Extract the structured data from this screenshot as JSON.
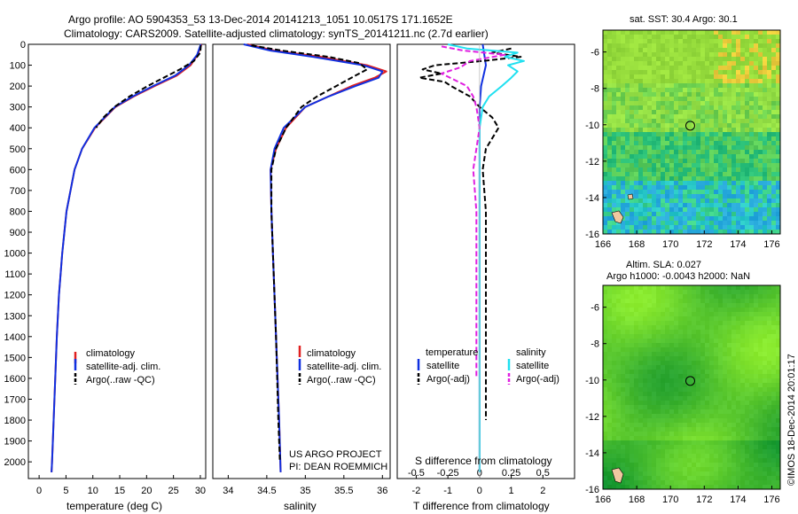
{
  "header": {
    "line1": "Argo profile: AO 5904353_53 13-Dec-2014 20141213_1051 10.0517S 171.1652E",
    "line2": "Climatology: CARS2009. Satellite-adjusted climatology: synTS_20141211.nc (2.7d earlier)"
  },
  "footer": {
    "project": "US ARGO PROJECT",
    "pi": "PI: DEAN ROEMMICH",
    "stamp": "©IMOS 18-Dec-2014 20:01:17"
  },
  "colors": {
    "climatology": "#e02020",
    "satellite": "#1030e0",
    "argo": "#000000",
    "sat_salinity": "#20e0f0",
    "argo_salinity_adj": "#e020e0"
  },
  "chart_data": [
    {
      "id": "temperature",
      "type": "line",
      "xlabel": "temperature (deg C)",
      "ylabel": "",
      "xlim": [
        -2,
        31
      ],
      "ylim": [
        2080,
        0
      ],
      "xticks": [
        0,
        5,
        10,
        15,
        20,
        25,
        30
      ],
      "yticks": [
        0,
        100,
        200,
        300,
        400,
        500,
        600,
        700,
        800,
        900,
        1000,
        1100,
        1200,
        1300,
        1400,
        1500,
        1600,
        1700,
        1800,
        1900,
        2000
      ],
      "legend": {
        "position": "lower-center",
        "entries": [
          "climatology",
          "satellite-adj. clim.",
          "Argo(..raw -QC)"
        ]
      },
      "series": [
        {
          "name": "climatology",
          "color": "#e02020",
          "style": "solid",
          "y": [
            0,
            50,
            100,
            150,
            200,
            250,
            300,
            400,
            500,
            600,
            800,
            1000,
            1200,
            1400,
            1600,
            1800,
            2000,
            2050
          ],
          "x": [
            30.2,
            29.5,
            28.2,
            25.6,
            21.5,
            17.6,
            14.2,
            10.4,
            8.0,
            6.6,
            5.1,
            4.3,
            3.7,
            3.3,
            3.0,
            2.7,
            2.4,
            2.3
          ]
        },
        {
          "name": "satellite-adj. clim.",
          "color": "#1030e0",
          "style": "solid",
          "y": [
            0,
            50,
            100,
            150,
            200,
            250,
            300,
            400,
            500,
            600,
            800,
            1000,
            1200,
            1400,
            1600,
            1800,
            2000,
            2050
          ],
          "x": [
            30.1,
            29.4,
            27.9,
            25.3,
            21.2,
            17.4,
            14.1,
            10.3,
            8.0,
            6.6,
            5.1,
            4.3,
            3.7,
            3.3,
            3.0,
            2.7,
            2.4,
            2.3
          ]
        },
        {
          "name": "Argo(..raw -QC)",
          "color": "#000000",
          "style": "dashed",
          "y": [
            5,
            40,
            80,
            120,
            160,
            200,
            250,
            300,
            350,
            400
          ],
          "x": [
            30.1,
            30.0,
            28.8,
            26.2,
            23.2,
            20.2,
            16.8,
            14.0,
            12.0,
            10.6
          ]
        }
      ]
    },
    {
      "id": "salinity",
      "type": "line",
      "xlabel": "salinity",
      "ylabel": "",
      "xlim": [
        33.8,
        36.1
      ],
      "ylim": [
        2080,
        0
      ],
      "xticks": [
        34,
        34.5,
        35,
        35.5,
        36
      ],
      "yticks": [
        0,
        100,
        200,
        300,
        400,
        500,
        600,
        700,
        800,
        900,
        1000,
        1100,
        1200,
        1300,
        1400,
        1500,
        1600,
        1700,
        1800,
        1900,
        2000
      ],
      "legend": {
        "position": "lower-right",
        "entries": [
          "climatology",
          "satellite-adj. clim.",
          "Argo(..raw -QC)"
        ]
      },
      "series": [
        {
          "name": "climatology",
          "color": "#e02020",
          "style": "solid",
          "y": [
            0,
            30,
            60,
            100,
            130,
            160,
            200,
            250,
            300,
            400,
            500,
            600,
            800,
            1000,
            1400,
            1800,
            2050
          ],
          "x": [
            34.25,
            34.6,
            35.2,
            35.8,
            36.05,
            35.9,
            35.6,
            35.3,
            35.0,
            34.75,
            34.62,
            34.55,
            34.56,
            34.58,
            34.62,
            34.66,
            34.68
          ]
        },
        {
          "name": "satellite-adj. clim.",
          "color": "#1030e0",
          "style": "solid",
          "y": [
            0,
            30,
            60,
            100,
            130,
            160,
            200,
            250,
            300,
            400,
            500,
            600,
            800,
            1000,
            1400,
            1800,
            2050
          ],
          "x": [
            34.2,
            34.55,
            35.1,
            35.75,
            36.0,
            35.95,
            35.65,
            35.3,
            35.0,
            34.72,
            34.6,
            34.55,
            34.56,
            34.58,
            34.62,
            34.66,
            34.68
          ]
        },
        {
          "name": "Argo(..raw -QC)",
          "color": "#000000",
          "style": "dashed",
          "y": [
            5,
            30,
            60,
            90,
            120,
            150,
            180,
            210,
            250,
            300,
            350,
            400,
            500,
            600,
            800,
            1000,
            1400,
            1800,
            2000
          ],
          "x": [
            34.3,
            34.7,
            35.3,
            35.7,
            35.8,
            35.65,
            35.5,
            35.35,
            35.15,
            34.95,
            34.85,
            34.75,
            34.62,
            34.56,
            34.56,
            34.58,
            34.62,
            34.65,
            34.67
          ]
        }
      ]
    },
    {
      "id": "difference",
      "type": "line",
      "xlabel": "T difference from climatology",
      "ylabel": "",
      "top_label": "S difference from climatology",
      "xlim": [
        -2.6,
        3.0
      ],
      "ylim": [
        2080,
        0
      ],
      "xticks": [
        -2,
        -1,
        0,
        1,
        2
      ],
      "sticks_labels": [
        "-0.5",
        "-0.25",
        "0",
        "0.25",
        "0.5"
      ],
      "sticks_pos": [
        -2,
        -1,
        0,
        1,
        2
      ],
      "legend": {
        "position": "lower-center",
        "columns": [
          {
            "title": "temperature",
            "entries": [
              "satellite",
              "Argo(-adj)"
            ]
          },
          {
            "title": "salinity",
            "entries": [
              "satellite",
              "Argo(-adj)"
            ]
          }
        ]
      },
      "series": [
        {
          "name": "temperature satellite",
          "color": "#1030e0",
          "style": "solid",
          "y": [
            0,
            100,
            200,
            300,
            500,
            800,
            1200,
            1600,
            2050
          ],
          "x": [
            0.1,
            0.2,
            0.05,
            0.0,
            0.0,
            0.0,
            0.0,
            0.0,
            0.0
          ]
        },
        {
          "name": "temperature Argo(-adj)",
          "color": "#000000",
          "style": "dashed",
          "y": [
            20,
            40,
            60,
            80,
            100,
            120,
            140,
            160,
            180,
            200,
            250,
            300,
            350,
            400,
            500,
            600,
            800,
            1000,
            1200,
            1500,
            1800
          ],
          "x": [
            1.0,
            0.4,
            1.3,
            0.1,
            -1.4,
            -1.8,
            -1.2,
            -1.9,
            -1.1,
            -0.9,
            -0.3,
            0.0,
            0.4,
            0.6,
            0.2,
            0.1,
            0.2,
            0.2,
            0.2,
            0.2,
            0.2
          ]
        },
        {
          "name": "salinity satellite",
          "color": "#20e0f0",
          "style": "solid",
          "y": [
            0,
            20,
            40,
            60,
            80,
            100,
            130,
            160,
            200,
            250,
            300,
            400,
            600,
            800,
            1200,
            1600,
            2050
          ],
          "x": [
            -1.0,
            -0.4,
            1.2,
            0.8,
            1.4,
            0.9,
            1.2,
            1.0,
            0.7,
            0.3,
            0.1,
            0.0,
            0.0,
            0.0,
            0.0,
            0.0,
            0.0
          ]
        },
        {
          "name": "salinity Argo(-adj)",
          "color": "#e020e0",
          "style": "dashed",
          "y": [
            10,
            30,
            50,
            80,
            110,
            140,
            170,
            200,
            250,
            300,
            400,
            500,
            600,
            800,
            1200,
            1600
          ],
          "x": [
            -1.2,
            -0.5,
            0.8,
            -0.3,
            -0.6,
            -1.2,
            -0.8,
            -0.4,
            -0.2,
            -0.1,
            0.0,
            -0.1,
            -0.2,
            -0.1,
            -0.1,
            -0.1
          ]
        }
      ]
    },
    {
      "id": "sst_map",
      "type": "heatmap",
      "title": "sat. SST: 30.4 Argo: 30.1",
      "xlim": [
        166,
        176.5
      ],
      "ylim": [
        -16,
        -4.8
      ],
      "xticks": [
        166,
        168,
        170,
        172,
        174,
        176
      ],
      "yticks": [
        -6,
        -8,
        -10,
        -12,
        -14,
        -16
      ],
      "marker": {
        "lon": 171.17,
        "lat": -10.05
      }
    },
    {
      "id": "sla_map",
      "type": "heatmap",
      "title": "Altim. SLA: 0.027",
      "subtitle": "Argo h1000: -0.0043 h2000: NaN",
      "xlim": [
        166,
        176.5
      ],
      "ylim": [
        -16,
        -4.8
      ],
      "xticks": [
        166,
        168,
        170,
        172,
        174,
        176
      ],
      "yticks": [
        -6,
        -8,
        -10,
        -12,
        -14,
        -16
      ],
      "marker": {
        "lon": 171.17,
        "lat": -10.05
      }
    }
  ]
}
